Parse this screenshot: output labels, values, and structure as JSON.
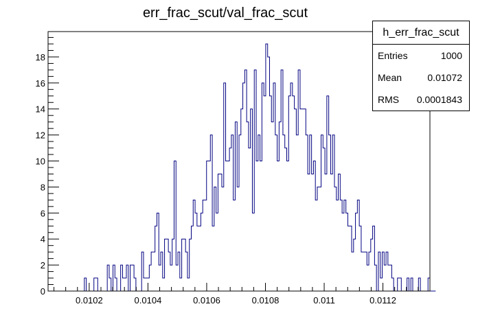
{
  "chart_data": {
    "type": "bar",
    "title": "err_frac_scut/val_frac_scut",
    "xlabel": "",
    "ylabel": "",
    "xlim": [
      0.01006,
      0.01136
    ],
    "ylim": [
      0,
      19.95
    ],
    "bin_width": 6.5e-06,
    "x_ticks": [
      0.0102,
      0.0104,
      0.0106,
      0.0108,
      0.011,
      0.0112
    ],
    "x_tick_labels": [
      "0.0102",
      "0.0104",
      "0.0106",
      "0.0108",
      "0.011",
      "0.0112"
    ],
    "y_ticks": [
      0,
      2,
      4,
      6,
      8,
      10,
      12,
      14,
      16,
      18
    ],
    "y_tick_labels": [
      "0",
      "2",
      "4",
      "6",
      "8",
      "10",
      "12",
      "14",
      "16",
      "18"
    ],
    "line_color": "#000080",
    "grid": false,
    "legend": "none",
    "values": [
      0,
      0,
      0,
      0,
      0,
      0,
      0,
      0,
      0,
      0,
      0,
      0,
      0,
      0,
      0,
      0,
      0,
      0,
      0,
      1,
      0,
      0,
      0,
      0,
      1,
      1,
      0,
      0,
      0,
      0,
      0,
      2,
      1,
      0,
      2,
      1,
      0,
      0,
      2,
      1,
      1,
      2,
      0,
      2,
      2,
      1,
      0,
      0,
      0,
      3,
      1,
      1,
      1,
      2,
      3,
      3,
      5,
      6,
      2,
      3,
      1,
      4,
      4,
      3,
      2,
      4,
      10,
      2,
      3,
      1,
      4,
      4,
      3,
      1,
      4,
      5,
      7,
      6,
      5,
      5,
      6,
      7,
      7,
      10,
      10,
      12,
      5,
      8,
      6,
      9,
      9,
      8,
      16,
      10,
      10,
      11,
      12,
      7,
      13,
      8,
      12,
      14,
      16,
      17,
      13,
      11,
      14,
      6,
      17,
      10,
      12,
      10,
      16,
      15,
      19,
      18,
      15,
      13,
      16,
      12,
      10,
      13,
      17,
      12,
      11,
      10,
      15,
      16,
      15,
      14,
      12,
      17,
      14,
      14,
      14,
      12,
      9,
      12,
      9,
      10,
      7,
      8,
      8,
      12,
      11,
      9,
      15,
      12,
      9,
      12,
      8,
      7,
      9,
      7,
      6,
      7,
      6,
      5,
      5,
      3,
      4,
      6,
      7,
      5,
      3,
      3,
      3,
      2,
      3,
      4,
      5,
      2,
      0,
      3,
      1,
      3,
      2,
      3,
      2,
      2,
      1,
      0,
      0,
      1,
      1,
      0,
      0,
      0,
      1,
      0,
      1,
      0,
      0,
      0,
      1,
      0,
      0,
      0,
      0,
      1,
      0,
      0,
      0
    ]
  },
  "stats_box": {
    "title": "h_err_frac_scut",
    "rows": [
      {
        "label": "Entries",
        "value": "1000"
      },
      {
        "label": "Mean",
        "value": "0.01072"
      },
      {
        "label": "RMS",
        "value": "0.0001843"
      }
    ]
  }
}
